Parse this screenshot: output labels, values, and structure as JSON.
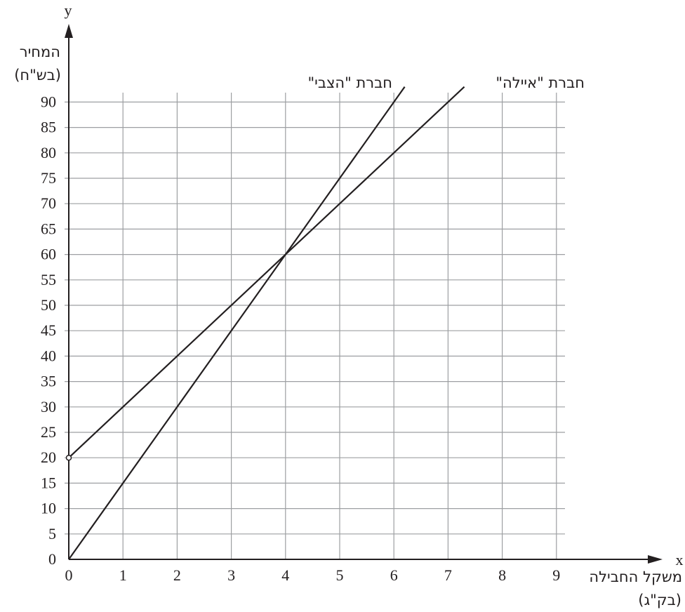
{
  "chart_data": {
    "type": "line",
    "x_axis": {
      "letter": "x",
      "label": "משקל החבילה",
      "unit": "(בק\"ג)",
      "ticks": [
        0,
        1,
        2,
        3,
        4,
        5,
        6,
        7,
        8,
        9
      ],
      "range": [
        0,
        9
      ]
    },
    "y_axis": {
      "letter": "y",
      "label": "המחיר",
      "unit": "(בש\"ח)",
      "ticks": [
        0,
        5,
        10,
        15,
        20,
        25,
        30,
        35,
        40,
        45,
        50,
        55,
        60,
        65,
        70,
        75,
        80,
        85,
        90
      ],
      "range": [
        0,
        90
      ]
    },
    "grid": true,
    "series": [
      {
        "name": "חברת \"הצבי\"",
        "points": [
          [
            0,
            0
          ],
          [
            6.2,
            93
          ]
        ],
        "start_marker": "none"
      },
      {
        "name": "חברת \"איילה\"",
        "points": [
          [
            0,
            20
          ],
          [
            7.3,
            93
          ]
        ],
        "start_marker": "open-circle"
      }
    ],
    "color": "#231f20",
    "grid_color": "#9d9fa2"
  }
}
